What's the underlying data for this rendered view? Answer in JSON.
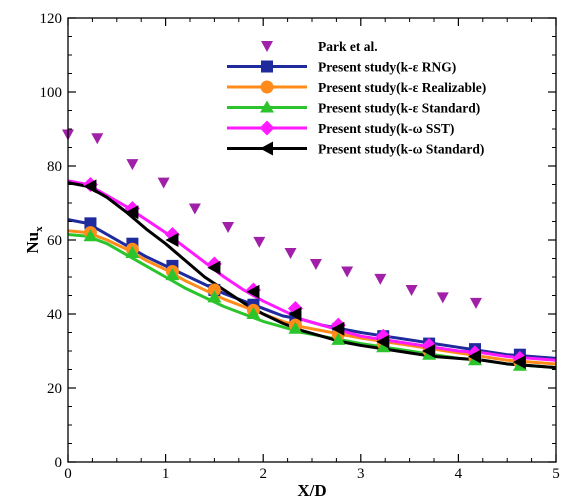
{
  "chart_data": {
    "type": "line",
    "xlabel": "X/D",
    "ylabel_main": "Nu",
    "ylabel_sub": "x",
    "xlim": [
      0,
      5
    ],
    "ylim": [
      0,
      120
    ],
    "x_ticks": [
      0,
      1,
      2,
      3,
      4,
      5
    ],
    "y_ticks": [
      0,
      20,
      40,
      60,
      80,
      100,
      120
    ],
    "grid": false,
    "legend_position": "top-right",
    "series": [
      {
        "name": "Park et al.",
        "style": "markers",
        "marker": "triangle-down",
        "color": "#a020a8",
        "x": [
          0.0,
          0.3,
          0.66,
          0.98,
          1.3,
          1.64,
          1.96,
          2.28,
          2.54,
          2.86,
          3.2,
          3.52,
          3.84,
          4.18
        ],
        "y": [
          88.5,
          87.5,
          80.5,
          75.5,
          68.5,
          63.5,
          59.5,
          56.5,
          53.5,
          51.5,
          49.5,
          46.5,
          44.5,
          43.0
        ]
      },
      {
        "name": "Present study(k-ε RNG)",
        "style": "line-markers",
        "marker": "square",
        "color": "#1f2a9c",
        "x": [
          0.0,
          0.2,
          0.4,
          0.6,
          0.8,
          1.0,
          1.2,
          1.4,
          1.6,
          1.8,
          2.0,
          2.2,
          2.4,
          2.6,
          2.8,
          3.0,
          3.25,
          3.5,
          3.75,
          4.0,
          4.25,
          4.5,
          4.75,
          5.0
        ],
        "y": [
          65.5,
          64.5,
          61.5,
          58.5,
          55.5,
          53.0,
          50.5,
          48.0,
          45.5,
          43.5,
          41.5,
          39.5,
          38.5,
          37.0,
          36.0,
          35.0,
          34.0,
          33.0,
          32.0,
          31.0,
          30.0,
          29.0,
          28.5,
          28.0
        ],
        "marker_x": [
          0.23,
          0.66,
          1.07,
          1.5,
          1.9,
          2.33,
          2.77,
          3.23,
          3.7,
          4.17,
          4.63
        ],
        "marker_y": [
          64.5,
          59.0,
          53.0,
          46.5,
          42.5,
          39.0,
          36.0,
          34.0,
          32.0,
          30.5,
          29.0
        ]
      },
      {
        "name": "Present study(k-ε Realizable)",
        "style": "line-markers",
        "marker": "circle",
        "color": "#ff8c1a",
        "x": [
          0.0,
          0.2,
          0.4,
          0.6,
          0.8,
          1.0,
          1.2,
          1.4,
          1.6,
          1.8,
          2.0,
          2.2,
          2.4,
          2.6,
          2.8,
          3.0,
          3.25,
          3.5,
          3.75,
          4.0,
          4.25,
          4.5,
          4.75,
          5.0
        ],
        "y": [
          62.5,
          62.0,
          60.0,
          57.5,
          54.5,
          52.0,
          49.0,
          46.5,
          44.0,
          42.0,
          40.0,
          38.0,
          36.5,
          35.5,
          34.5,
          33.5,
          32.5,
          31.5,
          30.5,
          29.5,
          28.5,
          27.5,
          27.0,
          26.5
        ],
        "marker_x": [
          0.23,
          0.66,
          1.07,
          1.5,
          1.9,
          2.33,
          2.77,
          3.23,
          3.7,
          4.17,
          4.63
        ],
        "marker_y": [
          62.0,
          57.5,
          51.5,
          46.5,
          41.0,
          37.0,
          34.5,
          32.0,
          30.0,
          28.0,
          27.0
        ]
      },
      {
        "name": "Present study(k-ε Standard)",
        "style": "line-markers",
        "marker": "triangle-up",
        "color": "#2cc42c",
        "x": [
          0.0,
          0.2,
          0.4,
          0.6,
          0.8,
          1.0,
          1.2,
          1.4,
          1.6,
          1.8,
          2.0,
          2.2,
          2.4,
          2.6,
          2.8,
          3.0,
          3.25,
          3.5,
          3.75,
          4.0,
          4.25,
          4.5,
          4.75,
          5.0
        ],
        "y": [
          61.5,
          61.0,
          59.0,
          56.0,
          53.0,
          50.0,
          47.0,
          44.5,
          42.0,
          40.0,
          38.0,
          36.5,
          35.0,
          34.0,
          33.0,
          32.0,
          31.0,
          30.0,
          29.0,
          28.0,
          27.5,
          26.5,
          26.0,
          25.5
        ],
        "marker_x": [
          0.23,
          0.66,
          1.07,
          1.5,
          1.9,
          2.33,
          2.77,
          3.23,
          3.7,
          4.17,
          4.63
        ],
        "marker_y": [
          61.0,
          56.5,
          50.5,
          44.5,
          40.0,
          36.0,
          33.0,
          31.0,
          29.0,
          27.5,
          26.0
        ]
      },
      {
        "name": "Present study(k-ω SST)",
        "style": "line-markers",
        "marker": "diamond",
        "color": "#ff1aff",
        "x": [
          0.0,
          0.2,
          0.4,
          0.6,
          0.8,
          1.0,
          1.2,
          1.4,
          1.6,
          1.8,
          2.0,
          2.2,
          2.4,
          2.6,
          2.8,
          3.0,
          3.25,
          3.5,
          3.75,
          4.0,
          4.25,
          4.5,
          4.75,
          5.0
        ],
        "y": [
          76.0,
          75.0,
          72.0,
          69.0,
          65.5,
          62.0,
          58.0,
          54.0,
          50.0,
          46.5,
          43.5,
          41.0,
          38.5,
          37.0,
          35.5,
          34.0,
          33.0,
          32.0,
          31.0,
          30.0,
          29.5,
          28.5,
          28.0,
          27.5
        ],
        "marker_x": [
          0.23,
          0.66,
          1.07,
          1.5,
          1.9,
          2.33,
          2.77,
          3.23,
          3.7,
          4.17,
          4.63
        ],
        "marker_y": [
          75.0,
          68.5,
          61.5,
          53.5,
          46.5,
          41.5,
          37.0,
          34.0,
          31.5,
          29.5,
          28.0
        ]
      },
      {
        "name": "Present study(k-ω Standard)",
        "style": "line-markers",
        "marker": "triangle-left",
        "color": "#000000",
        "x": [
          0.0,
          0.2,
          0.4,
          0.6,
          0.8,
          1.0,
          1.2,
          1.4,
          1.6,
          1.8,
          2.0,
          2.2,
          2.4,
          2.6,
          2.8,
          3.0,
          3.25,
          3.5,
          3.75,
          4.0,
          4.25,
          4.5,
          4.75,
          5.0
        ],
        "y": [
          75.5,
          74.5,
          71.5,
          67.5,
          63.0,
          59.0,
          54.5,
          50.0,
          46.5,
          43.0,
          40.0,
          37.5,
          35.5,
          34.0,
          32.5,
          31.5,
          30.5,
          29.5,
          28.5,
          28.0,
          27.5,
          26.5,
          26.0,
          25.5
        ],
        "marker_x": [
          0.23,
          0.66,
          1.07,
          1.5,
          1.9,
          2.33,
          2.77,
          3.23,
          3.7,
          4.17,
          4.63
        ],
        "marker_y": [
          74.5,
          67.5,
          60.0,
          52.5,
          46.0,
          40.0,
          36.0,
          32.5,
          30.0,
          28.5,
          27.0
        ]
      }
    ]
  }
}
